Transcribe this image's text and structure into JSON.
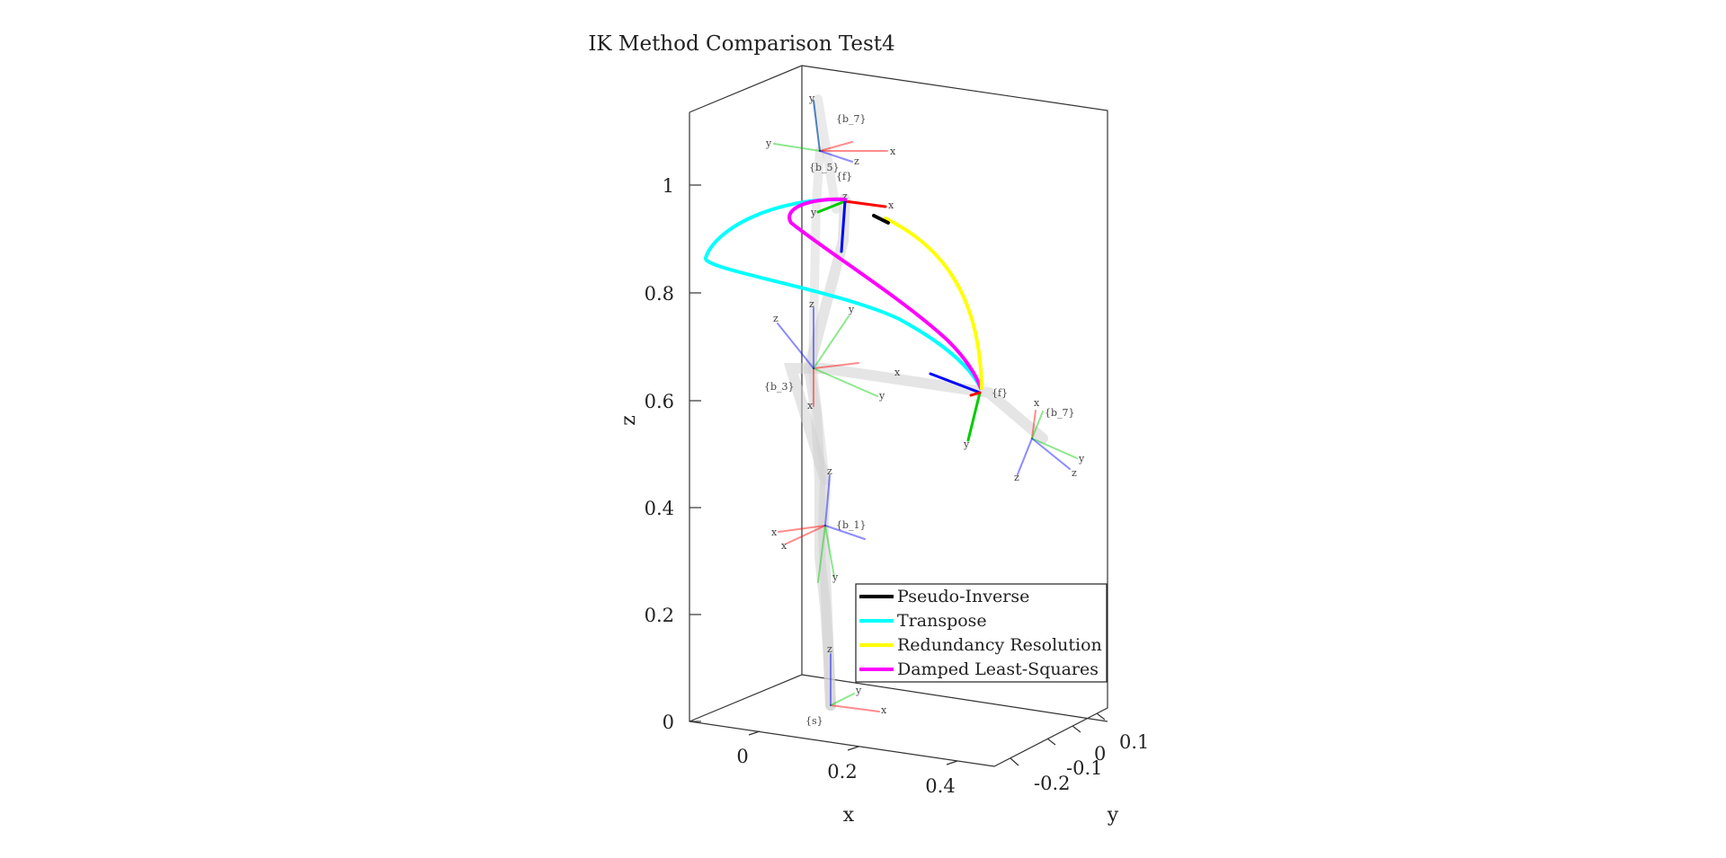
{
  "chart_data": {
    "type": "line",
    "projection": "3d",
    "title": "IK Method Comparison Test4",
    "xlabel": "x",
    "ylabel": "y",
    "zlabel": "z",
    "xticks": [
      "0",
      "0.2",
      "0.4"
    ],
    "yticks": [
      "-0.2",
      "-0.1",
      "0",
      "0.1"
    ],
    "zticks": [
      "0",
      "0.2",
      "0.4",
      "0.6",
      "0.8",
      "1"
    ],
    "grid": false,
    "legend_position": "bottom-right",
    "series": [
      {
        "name": "Pseudo-Inverse",
        "color": "#000000",
        "points": [
          [
            0.13,
            0.02,
            0.93
          ],
          [
            0.14,
            0.02,
            0.925
          ],
          [
            0.15,
            0.02,
            0.92
          ]
        ]
      },
      {
        "name": "Transpose",
        "color": "#00ffff",
        "points": [
          [
            0.08,
            0.0,
            0.97
          ],
          [
            -0.05,
            0.01,
            0.94
          ],
          [
            -0.14,
            0.02,
            0.87
          ],
          [
            -0.05,
            0.03,
            0.82
          ],
          [
            0.08,
            0.04,
            0.77
          ],
          [
            0.22,
            0.05,
            0.7
          ],
          [
            0.32,
            0.06,
            0.62
          ]
        ]
      },
      {
        "name": "Redundancy Resolution",
        "color": "#ffff00",
        "points": [
          [
            0.15,
            0.02,
            0.92
          ],
          [
            0.26,
            0.03,
            0.86
          ],
          [
            0.32,
            0.045,
            0.77
          ],
          [
            0.33,
            0.06,
            0.62
          ]
        ]
      },
      {
        "name": "Damped Least-Squares",
        "color": "#ff00ff",
        "points": [
          [
            0.08,
            0.0,
            0.97
          ],
          [
            0.02,
            0.0,
            0.96
          ],
          [
            0.04,
            0.01,
            0.92
          ],
          [
            0.12,
            0.02,
            0.85
          ],
          [
            0.22,
            0.04,
            0.76
          ],
          [
            0.32,
            0.06,
            0.62
          ]
        ]
      }
    ],
    "frame_labels": [
      "{b_7}",
      "{b_5}",
      "{f}",
      "{b_3}",
      "{b_1}",
      "{s}",
      "{f}",
      "{b_7}"
    ],
    "axis_letters": [
      "x",
      "y",
      "z"
    ]
  }
}
